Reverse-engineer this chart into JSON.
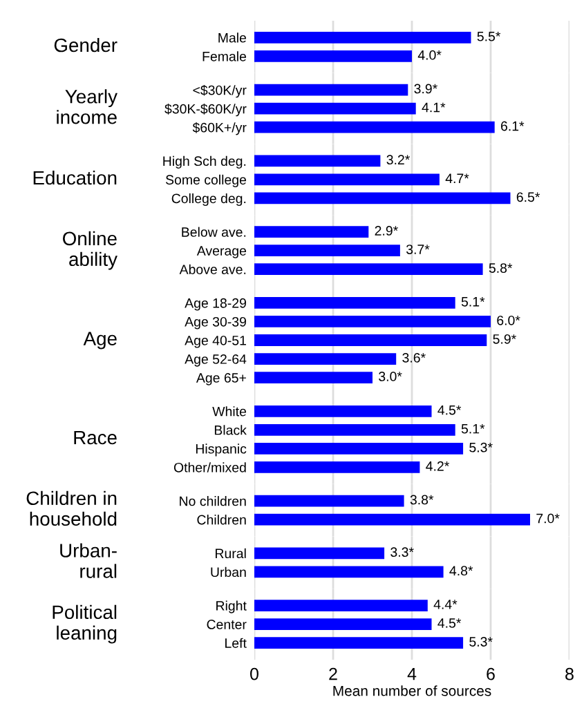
{
  "chart_data": [
    {
      "type": "bar",
      "orientation": "horizontal",
      "title": "Gender",
      "categories": [
        "Male",
        "Female"
      ],
      "values": [
        5.5,
        4.0
      ],
      "value_labels": [
        "5.5*",
        "4.0*"
      ],
      "color": "#0000ff",
      "xlim": [
        0,
        8
      ],
      "xticks": [
        0,
        2,
        4,
        6,
        8
      ],
      "grid": "x",
      "tick_labels": "y"
    },
    {
      "type": "bar",
      "orientation": "horizontal",
      "title": "Yearly\nincome",
      "categories": [
        "<$30K/yr",
        "$30K-$60K/yr",
        "$60K+/yr"
      ],
      "values": [
        3.9,
        4.1,
        6.1
      ],
      "value_labels": [
        "3.9*",
        "4.1*",
        "6.1*"
      ],
      "color": "#0000ff",
      "xlim": [
        0,
        8
      ],
      "xticks": [
        0,
        2,
        4,
        6,
        8
      ],
      "grid": "x",
      "tick_labels": "y"
    },
    {
      "type": "bar",
      "orientation": "horizontal",
      "title": "Education",
      "categories": [
        "High Sch deg.",
        "Some college",
        "College deg."
      ],
      "values": [
        3.2,
        4.7,
        6.5
      ],
      "value_labels": [
        "3.2*",
        "4.7*",
        "6.5*"
      ],
      "color": "#0000ff",
      "xlim": [
        0,
        8
      ],
      "xticks": [
        0,
        2,
        4,
        6,
        8
      ],
      "grid": "x",
      "tick_labels": "y"
    },
    {
      "type": "bar",
      "orientation": "horizontal",
      "title": "Online\nability",
      "categories": [
        "Below ave.",
        "Average",
        "Above ave."
      ],
      "values": [
        2.9,
        3.7,
        5.8
      ],
      "value_labels": [
        "2.9*",
        "3.7*",
        "5.8*"
      ],
      "color": "#0000ff",
      "xlim": [
        0,
        8
      ],
      "xticks": [
        0,
        2,
        4,
        6,
        8
      ],
      "grid": "x",
      "tick_labels": "y"
    },
    {
      "type": "bar",
      "orientation": "horizontal",
      "title": "Age",
      "categories": [
        "Age 18-29",
        "Age 30-39",
        "Age 40-51",
        "Age 52-64",
        "Age 65+"
      ],
      "values": [
        5.1,
        6.0,
        5.9,
        3.6,
        3.0
      ],
      "value_labels": [
        "5.1*",
        "6.0*",
        "5.9*",
        "3.6*",
        "3.0*"
      ],
      "color": "#0000ff",
      "xlim": [
        0,
        8
      ],
      "xticks": [
        0,
        2,
        4,
        6,
        8
      ],
      "grid": "x",
      "tick_labels": "y"
    },
    {
      "type": "bar",
      "orientation": "horizontal",
      "title": "Race",
      "categories": [
        "White",
        "Black",
        "Hispanic",
        "Other/mixed"
      ],
      "values": [
        4.5,
        5.1,
        5.3,
        4.2
      ],
      "value_labels": [
        "4.5*",
        "5.1*",
        "5.3*",
        "4.2*"
      ],
      "color": "#0000ff",
      "xlim": [
        0,
        8
      ],
      "xticks": [
        0,
        2,
        4,
        6,
        8
      ],
      "grid": "x",
      "tick_labels": "y"
    },
    {
      "type": "bar",
      "orientation": "horizontal",
      "title": "Children in\nhousehold",
      "categories": [
        "No children",
        "Children"
      ],
      "values": [
        3.8,
        7.0
      ],
      "value_labels": [
        "3.8*",
        "7.0*"
      ],
      "color": "#0000ff",
      "xlim": [
        0,
        8
      ],
      "xticks": [
        0,
        2,
        4,
        6,
        8
      ],
      "grid": "x",
      "tick_labels": "y"
    },
    {
      "type": "bar",
      "orientation": "horizontal",
      "title": "Urban-\nrural",
      "categories": [
        "Rural",
        "Urban"
      ],
      "values": [
        3.3,
        4.8
      ],
      "value_labels": [
        "3.3*",
        "4.8*"
      ],
      "color": "#0000ff",
      "xlim": [
        0,
        8
      ],
      "xticks": [
        0,
        2,
        4,
        6,
        8
      ],
      "grid": "x",
      "tick_labels": "y"
    },
    {
      "type": "bar",
      "orientation": "horizontal",
      "title": "Political\nleaning",
      "categories": [
        "Right",
        "Center",
        "Left"
      ],
      "values": [
        4.4,
        4.5,
        5.3
      ],
      "value_labels": [
        "4.4*",
        "4.5*",
        "5.3*"
      ],
      "color": "#0000ff",
      "xlim": [
        0,
        8
      ],
      "xticks": [
        0,
        2,
        4,
        6,
        8
      ],
      "grid": "x",
      "xlabel": "Mean number of sources"
    }
  ]
}
